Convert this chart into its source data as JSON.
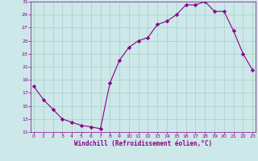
{
  "x": [
    0,
    1,
    2,
    3,
    4,
    5,
    6,
    7,
    8,
    9,
    10,
    11,
    12,
    13,
    14,
    15,
    16,
    17,
    18,
    19,
    20,
    21,
    22,
    23
  ],
  "y": [
    18,
    16,
    14.5,
    13,
    12.5,
    12,
    11.8,
    11.5,
    18.5,
    22,
    24,
    25,
    25.5,
    27.5,
    28,
    29,
    30.5,
    30.5,
    31,
    29.5,
    29.5,
    26.5,
    23,
    20.5
  ],
  "title": "",
  "xlabel": "Windchill (Refroidissement éolien,°C)",
  "ylabel": "",
  "ylim": [
    11,
    31
  ],
  "xlim": [
    -0.3,
    23.3
  ],
  "yticks": [
    11,
    13,
    15,
    17,
    19,
    21,
    23,
    25,
    27,
    29,
    31
  ],
  "xticks": [
    0,
    1,
    2,
    3,
    4,
    5,
    6,
    7,
    8,
    9,
    10,
    11,
    12,
    13,
    14,
    15,
    16,
    17,
    18,
    19,
    20,
    21,
    22,
    23
  ],
  "line_color": "#8B008B",
  "marker": "D",
  "marker_size": 2.2,
  "bg_color": "#cce8e8",
  "grid_color": "#aacccc",
  "spine_color": "#8B008B",
  "tick_label_color": "#8B008B",
  "xlabel_color": "#8B008B",
  "tick_fontsize": 4.5,
  "xlabel_fontsize": 5.5
}
